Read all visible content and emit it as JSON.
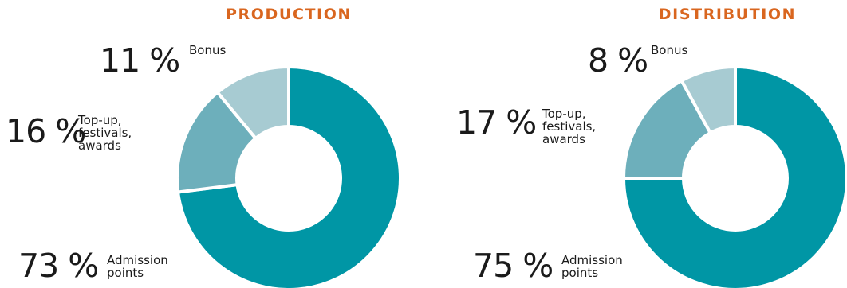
{
  "chart_data": [
    {
      "type": "pie",
      "title": "PRODUCTION",
      "categories": [
        "Admission points",
        "Top-up, festivals, awards",
        "Bonus"
      ],
      "values": [
        73,
        16,
        11
      ],
      "value_labels": [
        "73 %",
        "16 %",
        "11 %"
      ],
      "slice_labels": [
        "Admission\npoints",
        "Top-up,\nfestivals,\nawards",
        "Bonus"
      ],
      "colors": [
        "#0096a5",
        "#6dafbb",
        "#a7cbd2"
      ]
    },
    {
      "type": "pie",
      "title": "DISTRIBUTION",
      "categories": [
        "Admission points",
        "Top-up, festivals, awards",
        "Bonus"
      ],
      "values": [
        75,
        17,
        8
      ],
      "value_labels": [
        "75 %",
        "17 %",
        "8 %"
      ],
      "slice_labels": [
        "Admission\npoints",
        "Top-up,\nfestivals,\nawards",
        "Bonus"
      ],
      "colors": [
        "#0096a5",
        "#6dafbb",
        "#a7cbd2"
      ]
    }
  ]
}
